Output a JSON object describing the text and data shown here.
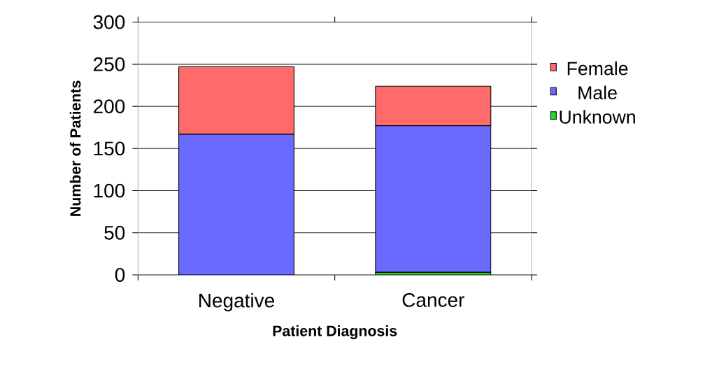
{
  "chart_data": {
    "type": "bar",
    "stacked": true,
    "xlabel": "Patient Diagnosis",
    "ylabel": "Number of Patients",
    "categories": [
      "Negative",
      "Cancer"
    ],
    "series": [
      {
        "name": "Unknown",
        "color": "#22dd22",
        "values": [
          0,
          3
        ]
      },
      {
        "name": "Male",
        "color": "#6a6aff",
        "values": [
          167,
          174
        ]
      },
      {
        "name": "Female",
        "color": "#ff6a6a",
        "values": [
          80,
          47
        ]
      }
    ],
    "ylim": [
      0,
      300
    ],
    "yticks": [
      0,
      50,
      100,
      150,
      200,
      250,
      300
    ],
    "grid": "y",
    "legend": "right"
  }
}
